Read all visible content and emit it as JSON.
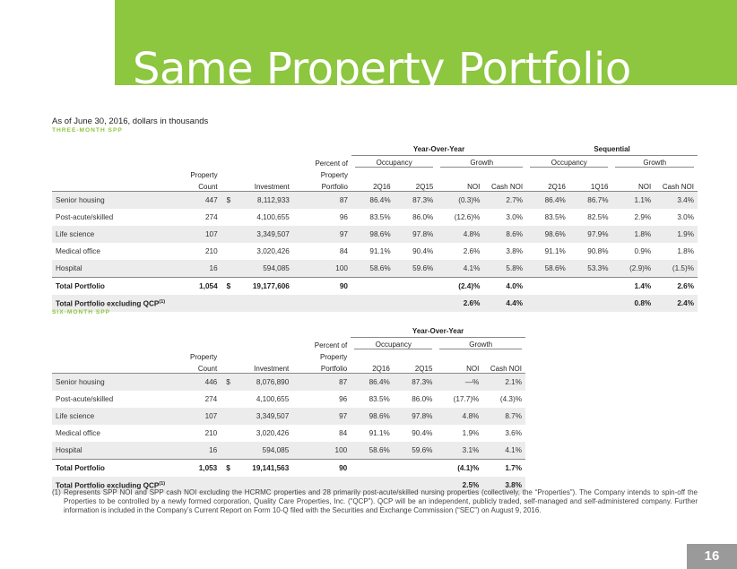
{
  "title": "Same Property Portfolio",
  "subtitle": "As of June 30, 2016, dollars in thousands",
  "three_month": {
    "section_label": "THREE-MONTH SPP",
    "group_yoy": "Year-Over-Year",
    "group_seq": "Sequential",
    "sub_occupancy": "Occupancy",
    "sub_growth": "Growth",
    "col_property_count": [
      "Property",
      "Count"
    ],
    "col_investment": "Investment",
    "col_percent": [
      "Percent of",
      "Property",
      "Portfolio"
    ],
    "cols": [
      "2Q16",
      "2Q15",
      "NOI",
      "Cash NOI",
      "2Q16",
      "1Q16",
      "NOI",
      "Cash NOI"
    ],
    "rows": [
      {
        "name": "Senior housing",
        "count": "447",
        "dollar": "$",
        "investment": "8,112,933",
        "percent": "87",
        "v": [
          "86.4%",
          "87.3%",
          "(0.3)%",
          "2.7%",
          "86.4%",
          "86.7%",
          "1.1%",
          "3.4%"
        ]
      },
      {
        "name": "Post-acute/skilled",
        "count": "274",
        "dollar": "",
        "investment": "4,100,655",
        "percent": "96",
        "v": [
          "83.5%",
          "86.0%",
          "(12.6)%",
          "3.0%",
          "83.5%",
          "82.5%",
          "2.9%",
          "3.0%"
        ]
      },
      {
        "name": "Life science",
        "count": "107",
        "dollar": "",
        "investment": "3,349,507",
        "percent": "97",
        "v": [
          "98.6%",
          "97.8%",
          "4.8%",
          "8.6%",
          "98.6%",
          "97.9%",
          "1.8%",
          "1.9%"
        ]
      },
      {
        "name": "Medical office",
        "count": "210",
        "dollar": "",
        "investment": "3,020,426",
        "percent": "84",
        "v": [
          "91.1%",
          "90.4%",
          "2.6%",
          "3.8%",
          "91.1%",
          "90.8%",
          "0.9%",
          "1.8%"
        ]
      },
      {
        "name": "Hospital",
        "count": "16",
        "dollar": "",
        "investment": "594,085",
        "percent": "100",
        "v": [
          "58.6%",
          "59.6%",
          "4.1%",
          "5.8%",
          "58.6%",
          "53.3%",
          "(2.9)%",
          "(1.5)%"
        ]
      }
    ],
    "total": {
      "name": "Total Portfolio",
      "count": "1,054",
      "dollar": "$",
      "investment": "19,177,606",
      "percent": "90",
      "v": [
        "",
        "",
        "(2.4)%",
        "4.0%",
        "",
        "",
        "1.4%",
        "2.6%"
      ]
    },
    "total_ex": {
      "name": "Total Portfolio excluding QCP",
      "sup": "(1)",
      "v": [
        "",
        "",
        "2.6%",
        "4.4%",
        "",
        "",
        "0.8%",
        "2.4%"
      ]
    }
  },
  "six_month": {
    "section_label": "SIX-MONTH SPP",
    "group_yoy": "Year-Over-Year",
    "sub_occupancy": "Occupancy",
    "sub_growth": "Growth",
    "col_property_count": [
      "Property",
      "Count"
    ],
    "col_investment": "Investment",
    "col_percent": [
      "Percent of",
      "Property",
      "Portfolio"
    ],
    "cols": [
      "2Q16",
      "2Q15",
      "NOI",
      "Cash NOI"
    ],
    "rows": [
      {
        "name": "Senior housing",
        "count": "446",
        "dollar": "$",
        "investment": "8,076,890",
        "percent": "87",
        "v": [
          "86.4%",
          "87.3%",
          "—%",
          "2.1%"
        ]
      },
      {
        "name": "Post-acute/skilled",
        "count": "274",
        "dollar": "",
        "investment": "4,100,655",
        "percent": "96",
        "v": [
          "83.5%",
          "86.0%",
          "(17.7)%",
          "(4.3)%"
        ]
      },
      {
        "name": "Life science",
        "count": "107",
        "dollar": "",
        "investment": "3,349,507",
        "percent": "97",
        "v": [
          "98.6%",
          "97.8%",
          "4.8%",
          "8.7%"
        ]
      },
      {
        "name": "Medical office",
        "count": "210",
        "dollar": "",
        "investment": "3,020,426",
        "percent": "84",
        "v": [
          "91.1%",
          "90.4%",
          "1.9%",
          "3.6%"
        ]
      },
      {
        "name": "Hospital",
        "count": "16",
        "dollar": "",
        "investment": "594,085",
        "percent": "100",
        "v": [
          "58.6%",
          "59.6%",
          "3.1%",
          "4.1%"
        ]
      }
    ],
    "total": {
      "name": "Total Portfolio",
      "count": "1,053",
      "dollar": "$",
      "investment": "19,141,563",
      "percent": "90",
      "v": [
        "",
        "",
        "(4.1)%",
        "1.7%"
      ]
    },
    "total_ex": {
      "name": "Total Portfolio excluding QCP",
      "sup": "(1)",
      "v": [
        "",
        "",
        "2.5%",
        "3.8%"
      ]
    }
  },
  "footnote": {
    "marker": "(1)",
    "text": "Represents SPP NOI and SPP cash NOI excluding the HCRMC properties and 28 primarily post-acute/skilled nursing properties (collectively, the “Properties”). The Company intends to spin-off the Properties to be controlled by a newly formed corporation, Quality Care Properties, Inc. (“QCP”). QCP will be an independent, publicly traded, self-managed and self-administered company. Further information is included in the Company’s Current Report on Form 10-Q filed with the Securities and Exchange Commission (“SEC”) on August 9, 2016."
  },
  "page_number": "16",
  "colors": {
    "accent": "#8dc63f",
    "row_shade": "#ececec",
    "page_box": "#9a9a9a"
  }
}
